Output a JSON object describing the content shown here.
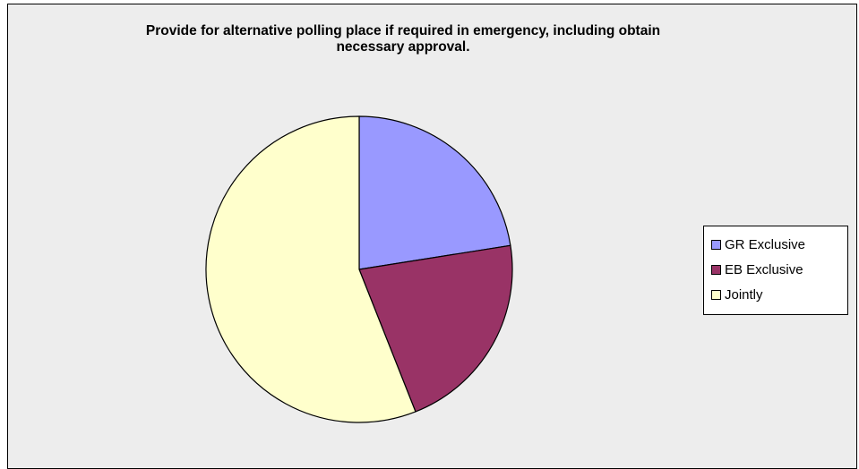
{
  "chart_data": {
    "type": "pie",
    "title": "Provide for alternative polling place if required in emergency, including obtain\nnecessary approval.",
    "categories": [
      "GR Exclusive",
      "EB Exclusive",
      "Jointly"
    ],
    "values": [
      22.5,
      21.5,
      56
    ],
    "colors": [
      "#9999ff",
      "#993366",
      "#ffffcc"
    ],
    "legend_position": "right"
  }
}
